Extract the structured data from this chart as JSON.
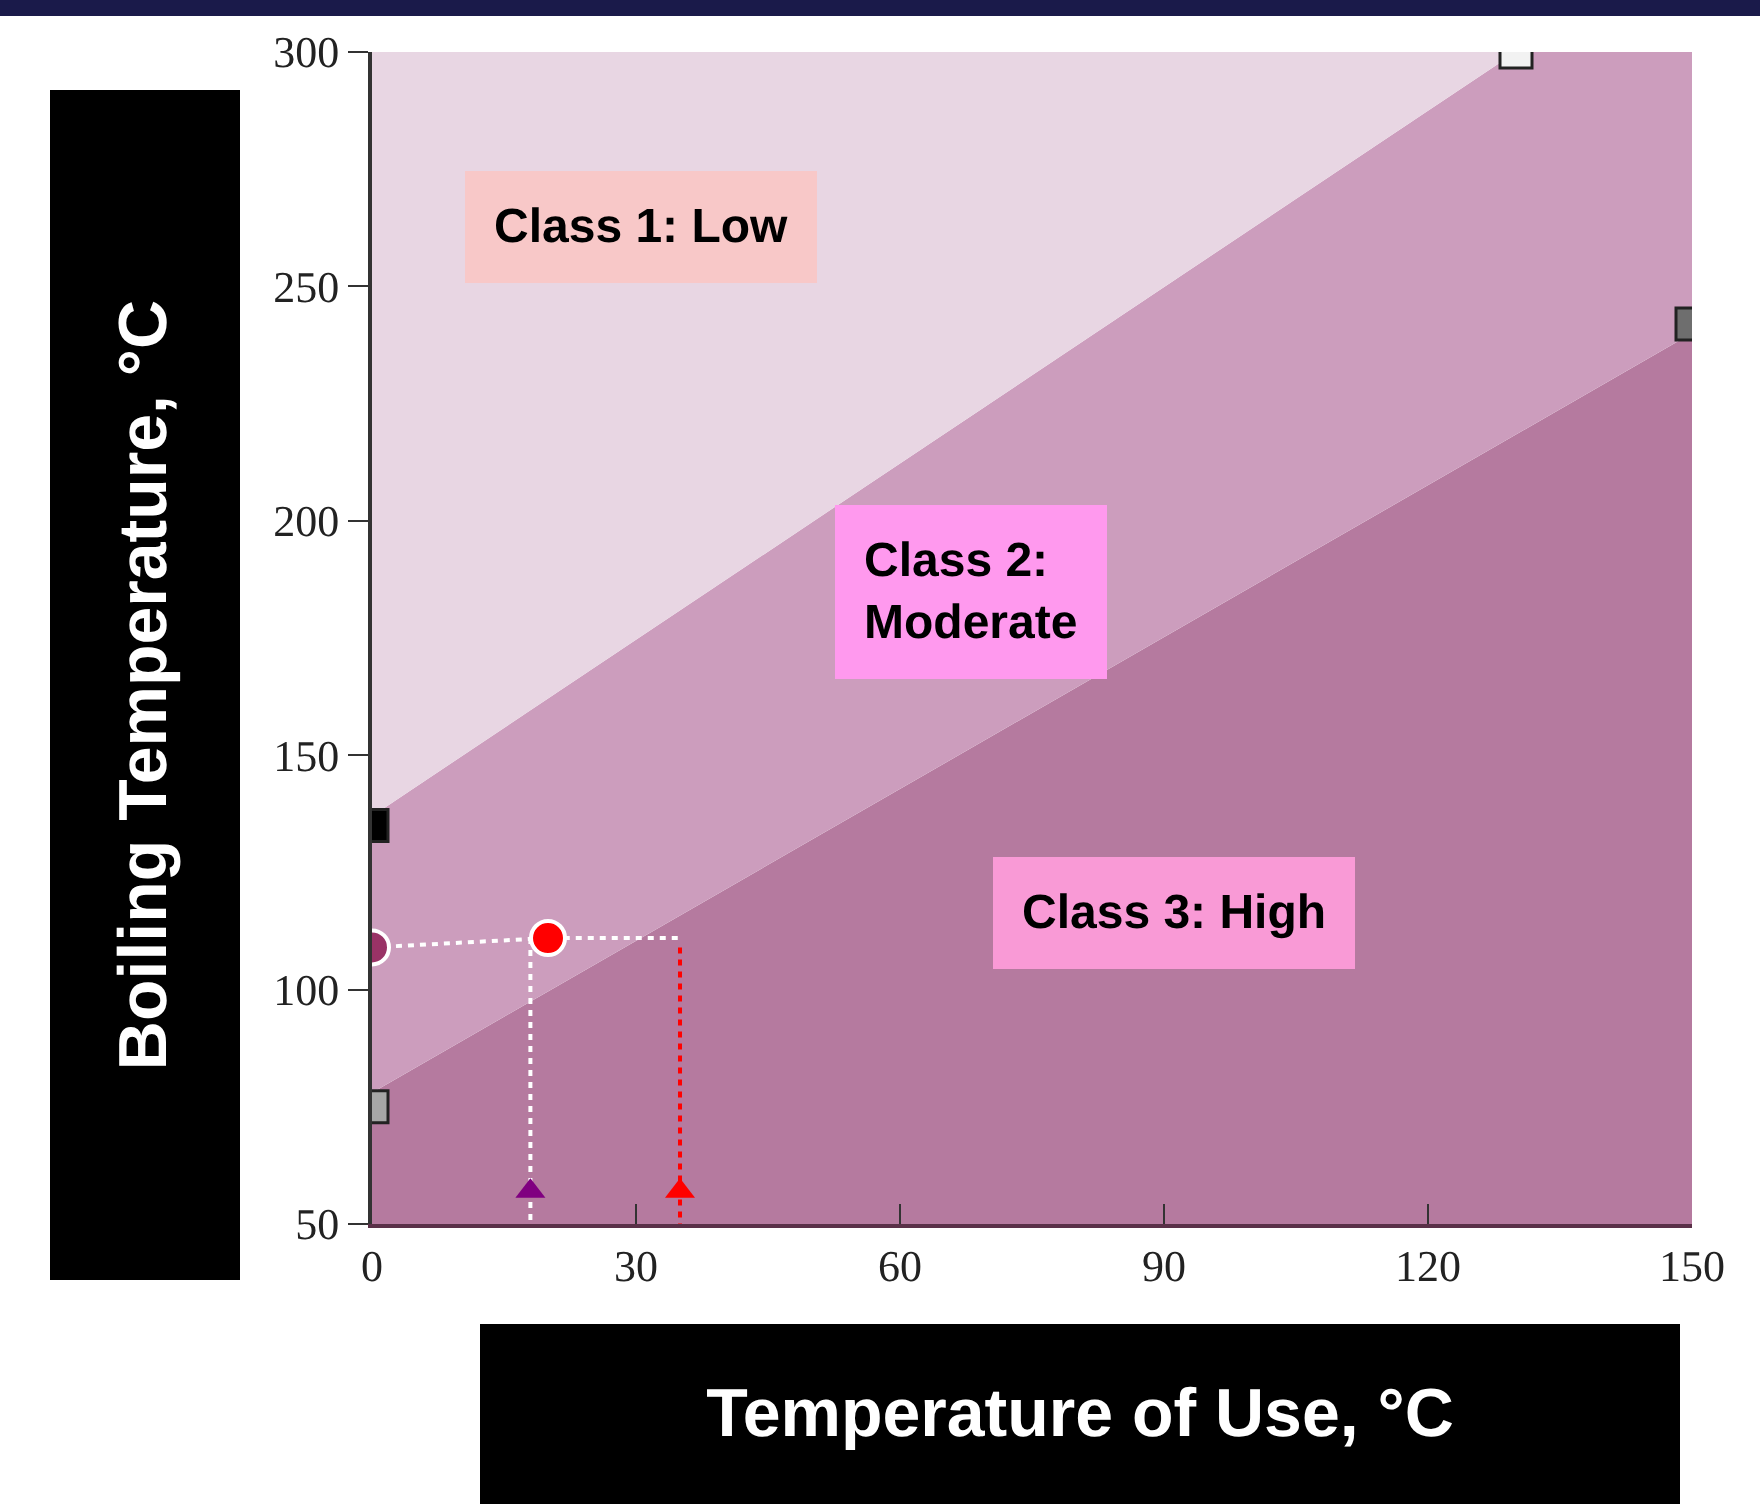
{
  "chart_data": {
    "type": "area",
    "xlabel": "Temperature of Use, °C",
    "ylabel": "Boiling Temperature, °C",
    "xlim": [
      0,
      150
    ],
    "xticks": [
      0,
      30,
      60,
      90,
      120,
      150
    ],
    "ylim": [
      50,
      300
    ],
    "yticks": [
      50,
      100,
      150,
      200,
      250,
      300
    ],
    "series": [
      {
        "color": "#b57a9f",
        "x": [
          0,
          150
        ],
        "values": [
          78,
          240
        ]
      },
      {
        "color": "#cc9dbd",
        "x": [
          0,
          130,
          150
        ],
        "values": [
          137,
          300,
          300
        ]
      },
      {
        "color": "#e8d6e3",
        "x": [
          0,
          150
        ],
        "values": [
          300,
          300
        ]
      },
      {
        "type": "line",
        "color": "#ffffff",
        "line_style": "dotted",
        "x": [
          0,
          20,
          35
        ],
        "values": [
          109,
          111,
          111
        ]
      },
      {
        "type": "line",
        "color": "#ffffff",
        "line_style": "dotted",
        "x": [
          18,
          18
        ],
        "values": [
          111,
          50
        ]
      },
      {
        "type": "line",
        "color": "#ff0000",
        "line_style": "dotted",
        "x": [
          35,
          35
        ],
        "values": [
          109,
          50
        ]
      },
      {
        "type": "scatter",
        "marker": "square",
        "x": [
          0,
          0,
          130,
          150
        ],
        "values": [
          135,
          75,
          300,
          242
        ],
        "colors": [
          "#000000",
          "#a6a6a6",
          "#f2f2f2",
          "#6e6e6e"
        ]
      },
      {
        "type": "scatter",
        "marker": "circle",
        "x": [
          0,
          20
        ],
        "values": [
          109,
          111
        ],
        "colors": [
          "#993366",
          "#ff0000"
        ]
      },
      {
        "type": "scatter",
        "marker": "triangle",
        "x": [
          18,
          35
        ],
        "values": [
          57,
          57
        ],
        "colors": [
          "#800080",
          "#ff0000"
        ]
      }
    ],
    "annotations": [
      "Class 1: Low",
      "Class 2:\nModerate",
      "Class 3: High"
    ]
  }
}
